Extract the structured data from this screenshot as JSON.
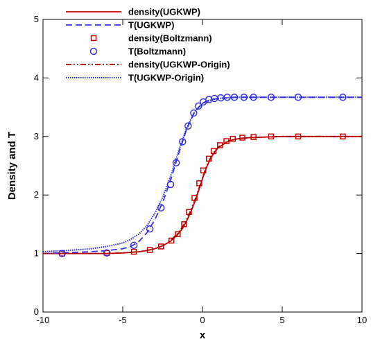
{
  "chart_data": {
    "type": "line",
    "title": "",
    "xlabel": "x",
    "ylabel": "Density and T",
    "xlim": [
      -10,
      10
    ],
    "ylim": [
      0,
      5
    ],
    "xticks": [
      -10,
      -5,
      0,
      5,
      10
    ],
    "yticks": [
      0,
      1,
      2,
      3,
      4,
      5
    ],
    "grid": false,
    "legend_position": "top-left",
    "series": [
      {
        "name": "density(UGKWP)",
        "style": "solid",
        "marker": "none",
        "color": "#cc0000",
        "x": [
          -10,
          -8,
          -6,
          -5,
          -4,
          -3.5,
          -3,
          -2.5,
          -2,
          -1.5,
          -1.25,
          -1,
          -0.75,
          -0.5,
          -0.25,
          0,
          0.25,
          0.5,
          0.75,
          1,
          1.5,
          2,
          2.5,
          3,
          4,
          5,
          7,
          10
        ],
        "y": [
          1.0,
          1.0,
          1.0,
          1.01,
          1.03,
          1.05,
          1.08,
          1.13,
          1.21,
          1.34,
          1.43,
          1.55,
          1.7,
          1.87,
          2.07,
          2.28,
          2.47,
          2.62,
          2.73,
          2.81,
          2.9,
          2.95,
          2.97,
          2.98,
          2.99,
          3.0,
          3.0,
          3.0
        ]
      },
      {
        "name": "T(UGKWP)",
        "style": "dashed",
        "marker": "none",
        "color": "#3333dd",
        "x": [
          -10,
          -8,
          -7,
          -6,
          -5,
          -4.5,
          -4,
          -3.5,
          -3,
          -2.5,
          -2,
          -1.5,
          -1,
          -0.5,
          0,
          0.5,
          1,
          1.5,
          2,
          3,
          4,
          6,
          10
        ],
        "y": [
          1.0,
          1.02,
          1.03,
          1.05,
          1.08,
          1.12,
          1.2,
          1.35,
          1.57,
          1.87,
          2.25,
          2.7,
          3.12,
          3.42,
          3.57,
          3.63,
          3.65,
          3.66,
          3.67,
          3.67,
          3.67,
          3.67,
          3.67
        ]
      },
      {
        "name": "density(Boltzmann)",
        "style": "none",
        "marker": "square",
        "color": "#cc0000",
        "x": [
          -8.8,
          -6.0,
          -4.3,
          -3.3,
          -2.6,
          -1.95,
          -1.55,
          -1.15,
          -0.85,
          -0.5,
          -0.2,
          0.05,
          0.4,
          0.7,
          1.1,
          1.5,
          1.9,
          2.5,
          3.2,
          4.3,
          6.0,
          8.8
        ],
        "y": [
          1.0,
          1.01,
          1.03,
          1.06,
          1.12,
          1.22,
          1.33,
          1.5,
          1.71,
          1.95,
          2.2,
          2.42,
          2.62,
          2.75,
          2.85,
          2.92,
          2.96,
          2.98,
          2.99,
          3.0,
          3.0,
          3.0
        ]
      },
      {
        "name": "T(Boltzmann)",
        "style": "none",
        "marker": "circle",
        "color": "#3333dd",
        "x": [
          -8.8,
          -6.0,
          -4.3,
          -3.3,
          -2.6,
          -2.0,
          -1.65,
          -1.25,
          -0.9,
          -0.55,
          -0.25,
          0.05,
          0.4,
          0.75,
          1.15,
          1.55,
          2.0,
          2.6,
          3.2,
          4.3,
          6.0,
          8.8
        ],
        "y": [
          1.0,
          1.01,
          1.14,
          1.42,
          1.78,
          2.18,
          2.55,
          2.91,
          3.18,
          3.4,
          3.52,
          3.59,
          3.63,
          3.65,
          3.66,
          3.67,
          3.67,
          3.67,
          3.67,
          3.67,
          3.67,
          3.67
        ]
      },
      {
        "name": "density(UGKWP-Origin)",
        "style": "dashdotdot",
        "marker": "none",
        "color": "#aa0000",
        "x": [
          -10,
          -8,
          -6,
          -5,
          -4,
          -3.5,
          -3,
          -2.5,
          -2,
          -1.5,
          -1.25,
          -1,
          -0.75,
          -0.5,
          -0.25,
          0,
          0.25,
          0.5,
          0.75,
          1,
          1.5,
          2,
          2.5,
          3,
          4,
          5,
          7,
          10
        ],
        "y": [
          1.0,
          1.0,
          1.0,
          1.01,
          1.03,
          1.05,
          1.08,
          1.13,
          1.22,
          1.36,
          1.46,
          1.58,
          1.73,
          1.9,
          2.09,
          2.3,
          2.49,
          2.63,
          2.74,
          2.82,
          2.91,
          2.95,
          2.97,
          2.98,
          2.99,
          3.0,
          3.0,
          3.0
        ]
      },
      {
        "name": "T(UGKWP-Origin)",
        "style": "dotted",
        "marker": "none",
        "color": "#2222ee",
        "x": [
          -10,
          -8,
          -7,
          -6,
          -5,
          -4.5,
          -4,
          -3.5,
          -3,
          -2.5,
          -2,
          -1.5,
          -1,
          -0.5,
          0,
          0.5,
          1,
          1.5,
          2,
          3,
          4,
          6,
          10
        ],
        "y": [
          1.03,
          1.06,
          1.08,
          1.12,
          1.18,
          1.24,
          1.33,
          1.47,
          1.68,
          1.96,
          2.32,
          2.75,
          3.14,
          3.42,
          3.56,
          3.62,
          3.65,
          3.66,
          3.67,
          3.67,
          3.67,
          3.67,
          3.67
        ]
      }
    ]
  }
}
